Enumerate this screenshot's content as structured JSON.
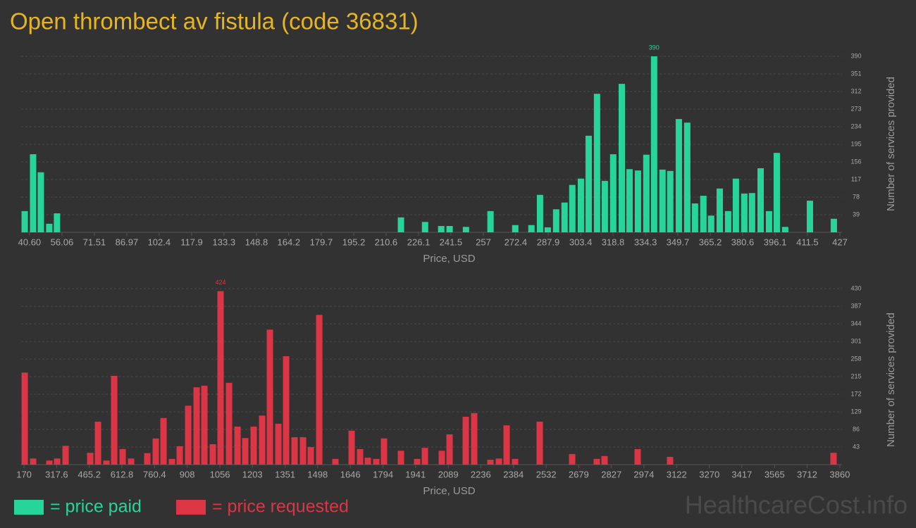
{
  "title": "Open thrombect av fistula (code 36831)",
  "watermark": "HealthcareCost.info",
  "chart_data": [
    {
      "type": "bar",
      "xlabel": "Price, USD",
      "ylabel": "Number of services provided",
      "x": [
        38.3,
        42.3,
        46.0,
        50.0,
        53.7,
        217.7,
        229.2,
        236.9,
        240.9,
        248.7,
        260.4,
        272.2,
        279.9,
        284.0,
        287.7,
        291.7,
        295.7,
        299.4,
        303.5,
        307.2,
        311.2,
        314.9,
        318.9,
        323.0,
        326.7,
        330.7,
        334.7,
        338.4,
        342.4,
        346.1,
        350.2,
        354.2,
        357.9,
        361.9,
        365.6,
        369.7,
        373.7,
        377.4,
        381.4,
        385.1,
        389.2,
        393.2,
        396.9,
        400.9,
        412.7,
        424.1
      ],
      "series": [
        {
          "name": "= price paid",
          "color": "#27d59a",
          "values": [
            47,
            173,
            133,
            19,
            42,
            33,
            23,
            14,
            14,
            12,
            47,
            16,
            16,
            83,
            11,
            51,
            66,
            105,
            119,
            214,
            307,
            114,
            173,
            329,
            140,
            137,
            172,
            390,
            139,
            136,
            251,
            243,
            64,
            81,
            37,
            97,
            47,
            119,
            86,
            87,
            142,
            47,
            176,
            12,
            70,
            30
          ]
        }
      ],
      "xlim": [
        36.6,
        428
      ],
      "ylim": [
        0,
        429
      ],
      "xticks": [
        {
          "value": 40.6,
          "label": "40.60"
        },
        56.06,
        71.51,
        86.97,
        102.4,
        117.9,
        133.3,
        148.8,
        164.2,
        179.7,
        195.2,
        210.6,
        226.1,
        241.5,
        257,
        272.4,
        287.9,
        303.4,
        318.8,
        334.3,
        349.7,
        365.2,
        380.6,
        396.1,
        411.5,
        427
      ],
      "yticks": [
        39,
        78,
        117,
        156,
        195,
        234,
        273,
        312,
        351,
        390
      ],
      "grid": true
    },
    {
      "type": "bar",
      "xlabel": "Price, USD",
      "ylabel": "Number of services provided",
      "x": [
        173.2,
        211.4,
        284.7,
        319.8,
        358.0,
        469.6,
        504.6,
        542.8,
        577.9,
        616.1,
        654.4,
        727.7,
        765.9,
        801.0,
        839.2,
        874.3,
        912.5,
        950.8,
        985.8,
        1024.0,
        1059.1,
        1097.3,
        1135.6,
        1170.6,
        1208.9,
        1247.1,
        1282.2,
        1320.4,
        1355.5,
        1393.7,
        1432.0,
        1467.0,
        1505.3,
        1578.5,
        1651.8,
        1690.1,
        1725.1,
        1763.4,
        1798.4,
        1874.9,
        1948.2,
        1983.2,
        2059.7,
        2094.8,
        2168.1,
        2206.3,
        2279.6,
        2317.9,
        2352.9,
        2391.1,
        2502.7,
        2649.3,
        2760.8,
        2795.9,
        2945.6,
        3092.2,
        3831.5
      ],
      "series": [
        {
          "name": "= price requested",
          "color": "#dc3545",
          "values": [
            225,
            15,
            10,
            15,
            46,
            29,
            105,
            10,
            217,
            38,
            15,
            28,
            64,
            114,
            14,
            45,
            144,
            189,
            193,
            50,
            424,
            200,
            93,
            65,
            93,
            120,
            330,
            100,
            265,
            67,
            67,
            43,
            366,
            14,
            83,
            38,
            17,
            14,
            64,
            34,
            14,
            41,
            34,
            74,
            117,
            126,
            12,
            15,
            96,
            14,
            105,
            26,
            14,
            21,
            38,
            19,
            29
          ]
        }
      ],
      "xlim": [
        157,
        3870
      ],
      "ylim": [
        0,
        456
      ],
      "xticks": [
        170,
        317.6,
        465.2,
        612.8,
        760.4,
        908,
        1056,
        1203,
        1351,
        1498,
        1646,
        1794,
        1941,
        2089,
        2236,
        2384,
        2532,
        2679,
        2827,
        2974,
        3122,
        3270,
        3417,
        3565,
        3712,
        3860
      ],
      "yticks": [
        43,
        86,
        129,
        172,
        215,
        258,
        301,
        344,
        387,
        430
      ],
      "grid": true
    }
  ]
}
